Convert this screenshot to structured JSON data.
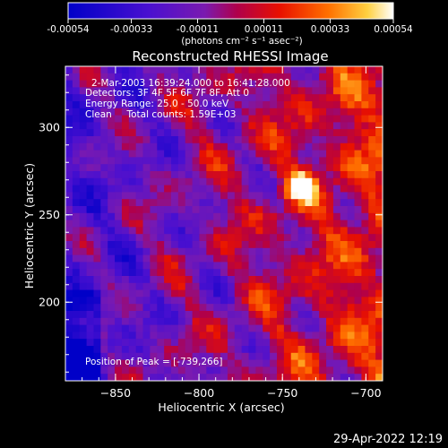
{
  "chart_data": {
    "type": "heatmap",
    "title": "Reconstructed RHESSI Image",
    "xlabel": "Heliocentric X (arcsec)",
    "ylabel": "Heliocentric Y (arcsec)",
    "xlim": [
      -880,
      -690
    ],
    "ylim": [
      155,
      335
    ],
    "xticks": [
      -850,
      -800,
      -750,
      -700
    ],
    "yticks": [
      200,
      250,
      300
    ],
    "colorbar": {
      "label": "(photons cm⁻² s⁻¹ asec⁻²)",
      "range": [
        -0.00054,
        0.00054
      ],
      "ticks": [
        "-0.00054",
        "-0.00033",
        "-0.00011",
        "0.00011",
        "0.00033",
        "0.00054"
      ]
    },
    "annotations": [
      "2-Mar-2003 16:39:24.000 to 16:41:28.000",
      "Detectors: 3F 4F 5F 6F 7F 8F, Att 0",
      "Energy Range: 25.0 - 50.0 keV",
      "Clean     Total counts: 1.59E+03"
    ],
    "peak_label": "Position of Peak = [-739,266]",
    "peak": [
      -739,
      266
    ]
  },
  "footer": {
    "date_stamp": "29-Apr-2022 12:19"
  }
}
